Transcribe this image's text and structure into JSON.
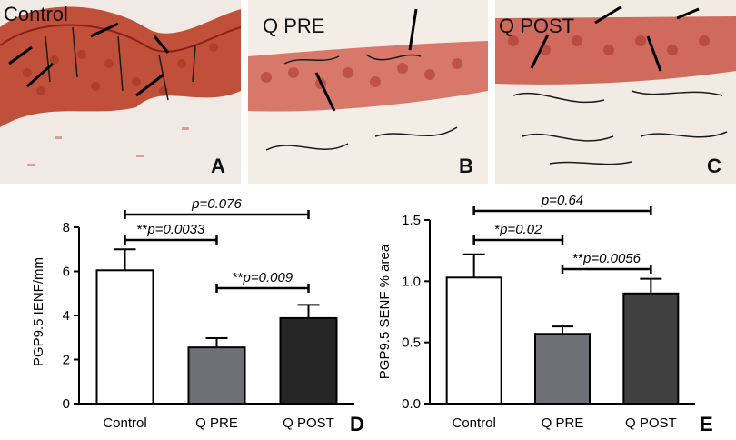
{
  "panels": [
    {
      "label": "Control",
      "letter": "A"
    },
    {
      "label": "Q PRE",
      "letter": "B"
    },
    {
      "label": "Q POST",
      "letter": "C"
    }
  ],
  "chart_data": [
    {
      "type": "bar",
      "panel_letter": "D",
      "categories": [
        "Control",
        "Q PRE",
        "Q POST"
      ],
      "values": [
        6.05,
        2.55,
        3.88
      ],
      "errors": [
        0.95,
        0.42,
        0.6
      ],
      "ylabel": "PGP9.5 IENF/mm",
      "ylim": [
        0,
        8
      ],
      "yticks": [
        "0",
        "2",
        "4",
        "6",
        "8"
      ],
      "bar_colors": [
        "#ffffff",
        "#6f6f78",
        "#262626"
      ],
      "comparisons": [
        {
          "from": 0,
          "to": 2,
          "prefix": "",
          "text": "p=0.076"
        },
        {
          "from": 0,
          "to": 1,
          "prefix": "**",
          "text": "p=0.0033"
        },
        {
          "from": 1,
          "to": 2,
          "prefix": "**",
          "text": "p=0.009"
        }
      ]
    },
    {
      "type": "bar",
      "panel_letter": "E",
      "categories": [
        "Control",
        "Q PRE",
        "Q POST"
      ],
      "values": [
        1.03,
        0.57,
        0.9
      ],
      "errors": [
        0.19,
        0.06,
        0.12
      ],
      "ylabel": "PGP9.5 SENF % area",
      "ylim": [
        0,
        1.5
      ],
      "yticks": [
        "0.0",
        "0.5",
        "1.0",
        "1.5"
      ],
      "bar_colors": [
        "#ffffff",
        "#6f6f78",
        "#404040"
      ],
      "comparisons": [
        {
          "from": 0,
          "to": 2,
          "prefix": "",
          "text": "p=0.64"
        },
        {
          "from": 0,
          "to": 1,
          "prefix": "*",
          "text": "p=0.02"
        },
        {
          "from": 1,
          "to": 2,
          "prefix": "**",
          "text": "p=0.0056"
        }
      ]
    }
  ]
}
